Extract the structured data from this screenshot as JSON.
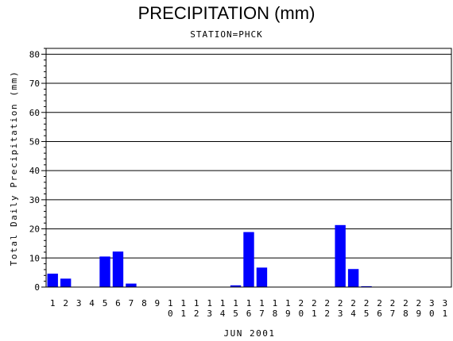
{
  "chart_data": {
    "type": "bar",
    "title": "PRECIPITATION (mm)",
    "subtitle": "STATION=PHCK",
    "xlabel": "JUN 2001",
    "ylabel": "Total Daily Precipitation (mm)",
    "ylim": [
      0,
      82
    ],
    "yticks": [
      0,
      10,
      20,
      30,
      40,
      50,
      60,
      70,
      80
    ],
    "grid": "horizontal",
    "colors": {
      "bar": "#0000ff",
      "axis": "#000000",
      "grid": "#000000"
    },
    "categories": [
      "1",
      "2",
      "3",
      "4",
      "5",
      "6",
      "7",
      "8",
      "9",
      "10",
      "11",
      "12",
      "13",
      "14",
      "15",
      "16",
      "17",
      "18",
      "19",
      "20",
      "21",
      "22",
      "23",
      "24",
      "25",
      "26",
      "27",
      "28",
      "29",
      "30",
      "31"
    ],
    "values": [
      4.6,
      2.9,
      0,
      0,
      10.5,
      12.2,
      1.2,
      0,
      0,
      0,
      0,
      0,
      0,
      0,
      0.6,
      18.9,
      6.7,
      0,
      0,
      0,
      0,
      0,
      21.3,
      6.2,
      0.3,
      0,
      0,
      0,
      0,
      0,
      0
    ]
  }
}
